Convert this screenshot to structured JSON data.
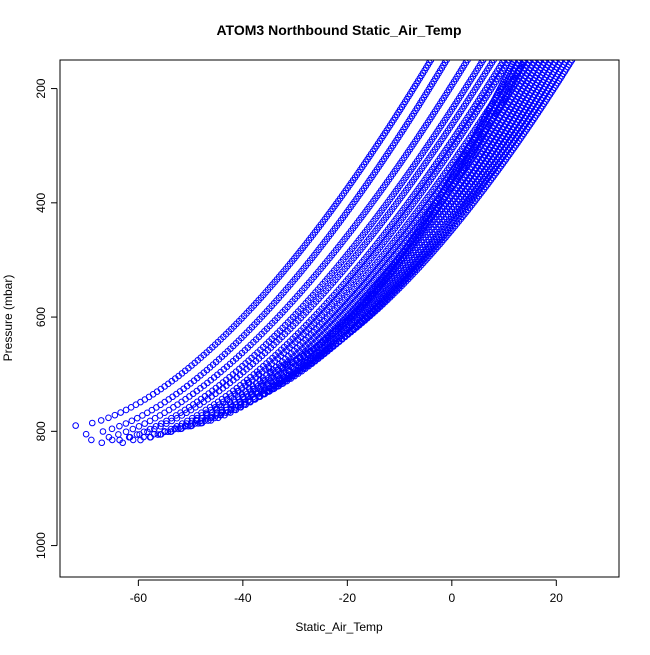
{
  "chart_data": {
    "type": "scatter",
    "title": "ATOM3 Northbound Static_Air_Temp",
    "xlabel": "Static_Air_Temp",
    "ylabel": "Pressure (mbar)",
    "xlim": [
      -75,
      32
    ],
    "ylim": [
      1055,
      150
    ],
    "y_reversed": true,
    "x_ticks": [
      -60,
      -40,
      -20,
      0,
      20
    ],
    "x_tick_labels": [
      "-60",
      "-40",
      "-20",
      "0",
      "20"
    ],
    "y_ticks": [
      200,
      400,
      600,
      800,
      1000
    ],
    "y_tick_labels": [
      "200",
      "400",
      "600",
      "800",
      "1000"
    ],
    "grid": false,
    "marker": "open-circle",
    "series_color": "#0000ff",
    "profiles": [
      {
        "tmin": -72,
        "tmax": -4,
        "pbot": 790
      },
      {
        "tmin": -70,
        "tmax": -1,
        "pbot": 805
      },
      {
        "tmin": -69,
        "tmax": 3,
        "pbot": 815
      },
      {
        "tmin": -67,
        "tmax": 6,
        "pbot": 820
      },
      {
        "tmin": -65,
        "tmax": 8,
        "pbot": 815
      },
      {
        "tmin": -63,
        "tmax": 10,
        "pbot": 820
      },
      {
        "tmin": -61,
        "tmax": 11,
        "pbot": 815
      },
      {
        "tmin": -59,
        "tmax": 13,
        "pbot": 810
      },
      {
        "tmin": -57,
        "tmax": 14,
        "pbot": 805
      },
      {
        "tmin": -55,
        "tmax": 15,
        "pbot": 800
      },
      {
        "tmin": -53,
        "tmax": 16,
        "pbot": 795
      },
      {
        "tmin": -51,
        "tmax": 17,
        "pbot": 790
      },
      {
        "tmin": -49,
        "tmax": 18,
        "pbot": 780
      },
      {
        "tmin": -47,
        "tmax": 19,
        "pbot": 770
      },
      {
        "tmin": -45,
        "tmax": 20,
        "pbot": 760
      },
      {
        "tmin": -43,
        "tmax": 21,
        "pbot": 745
      },
      {
        "tmin": -41,
        "tmax": 22,
        "pbot": 730
      },
      {
        "tmin": -39,
        "tmax": 23,
        "pbot": 715
      },
      {
        "tmin": -37,
        "tmax": 14,
        "pbot": 700
      },
      {
        "tmin": -35,
        "tmax": 12,
        "pbot": 690
      }
    ]
  }
}
